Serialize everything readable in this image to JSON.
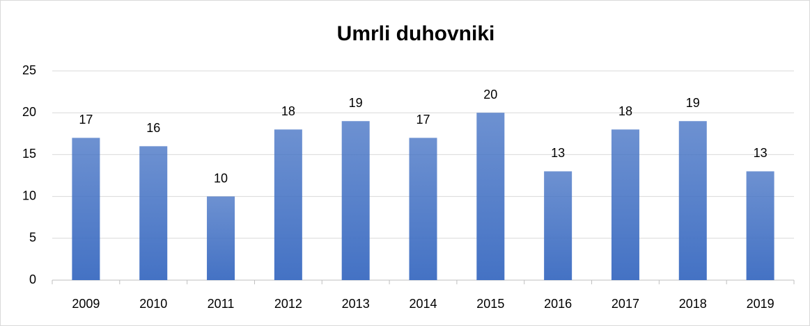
{
  "chart_data": {
    "type": "bar",
    "title": "Umrli duhovniki",
    "categories": [
      "2009",
      "2010",
      "2011",
      "2012",
      "2013",
      "2014",
      "2015",
      "2016",
      "2017",
      "2018",
      "2019"
    ],
    "values": [
      17,
      16,
      10,
      18,
      19,
      17,
      20,
      13,
      18,
      19,
      13
    ],
    "color": "#4472c4",
    "ylim": [
      0,
      25
    ],
    "yticks": [
      0,
      5,
      10,
      15,
      20,
      25
    ],
    "grid": true
  }
}
